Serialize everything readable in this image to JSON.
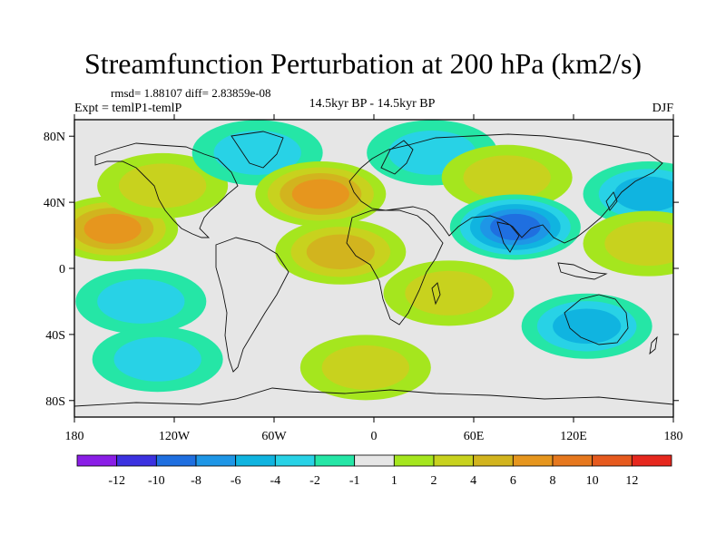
{
  "figure": {
    "title": "Streamfunction Perturbation at 200 hPa (km2/s)",
    "stats_line": "rmsd= 1.88107 diff= 2.83859e-08",
    "experiment_line": "Expt = temlP1-temlP",
    "period_line": "14.5kyr BP - 14.5kyr BP",
    "season": "DJF"
  },
  "chart_data": {
    "type": "heatmap",
    "title": "Streamfunction Perturbation at 200 hPa (km2/s)",
    "xlabel": "",
    "ylabel": "",
    "xlim": [
      -180,
      180
    ],
    "ylim": [
      -90,
      90
    ],
    "x_ticks": [
      {
        "value": -180,
        "label": "180"
      },
      {
        "value": -120,
        "label": "120W"
      },
      {
        "value": -60,
        "label": "60W"
      },
      {
        "value": 0,
        "label": "0"
      },
      {
        "value": 60,
        "label": "60E"
      },
      {
        "value": 120,
        "label": "120E"
      },
      {
        "value": 180,
        "label": "180"
      }
    ],
    "y_ticks": [
      {
        "value": 80,
        "label": "80N"
      },
      {
        "value": 40,
        "label": "40N"
      },
      {
        "value": 0,
        "label": "0"
      },
      {
        "value": -40,
        "label": "40S"
      },
      {
        "value": -80,
        "label": "80S"
      }
    ],
    "colorbar": {
      "levels": [
        -12,
        -10,
        -8,
        -6,
        -4,
        -2,
        -1,
        1,
        2,
        4,
        6,
        8,
        10,
        12
      ],
      "colors": [
        "#8a1ee6",
        "#3c32e0",
        "#1f6fe0",
        "#1e96e6",
        "#10b4e0",
        "#28d2e6",
        "#25e6a6",
        "#e6e6e6",
        "#a5e61e",
        "#c8d21e",
        "#d2b41e",
        "#e6961e",
        "#e6781e",
        "#e65a1e",
        "#e6281e"
      ]
    },
    "features": [
      {
        "name": "central-pacific-north-positive",
        "lon": -157,
        "lat": 24,
        "value": 7.5
      },
      {
        "name": "north-america-positive",
        "lon": -127,
        "lat": 50,
        "value": 3.5
      },
      {
        "name": "western-atlantic-negative",
        "lon": -70,
        "lat": 70,
        "value": -3
      },
      {
        "name": "north-atlantic-positive",
        "lon": -32,
        "lat": 45,
        "value": 6.5
      },
      {
        "name": "tropical-atlantic-positive",
        "lon": -20,
        "lat": 10,
        "value": 4.5
      },
      {
        "name": "europe-negative",
        "lon": 35,
        "lat": 70,
        "value": -4
      },
      {
        "name": "siberia-positive",
        "lon": 80,
        "lat": 55,
        "value": 2.5
      },
      {
        "name": "south-asia-negative",
        "lon": 85,
        "lat": 25,
        "value": -9
      },
      {
        "name": "north-pacific-negative",
        "lon": 165,
        "lat": 45,
        "value": -5
      },
      {
        "name": "east-asia-positive",
        "lon": 165,
        "lat": 15,
        "value": 3.5
      },
      {
        "name": "indian-ocean-positive",
        "lon": 45,
        "lat": -15,
        "value": 4
      },
      {
        "name": "south-pacific-negative",
        "lon": -140,
        "lat": -20,
        "value": -4
      },
      {
        "name": "australia-negative",
        "lon": 128,
        "lat": -35,
        "value": -5
      },
      {
        "name": "southern-ocean-negative-west",
        "lon": -130,
        "lat": -55,
        "value": -4
      },
      {
        "name": "southern-ocean-positive",
        "lon": -5,
        "lat": -60,
        "value": 4
      }
    ]
  }
}
